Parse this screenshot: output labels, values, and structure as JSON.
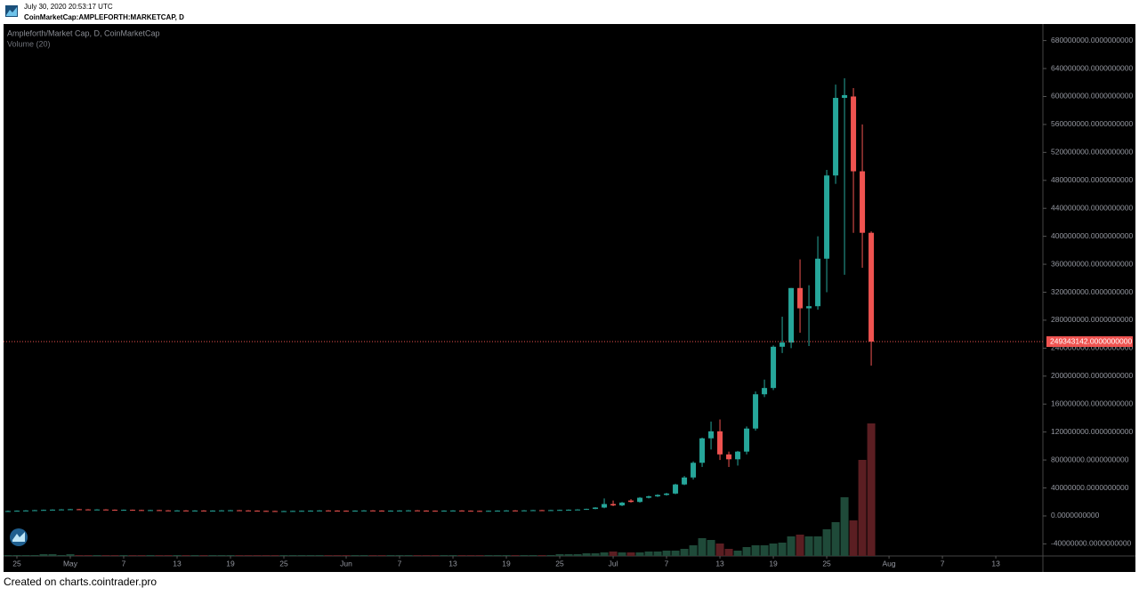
{
  "header": {
    "timestamp": "July 30, 2020 20:53:17 UTC",
    "symbol": "CoinMarketCap:AMPLEFORTH:MARKETCAP, D"
  },
  "footer": "Created on charts.cointrader.pro",
  "chart_data": {
    "type": "candlestick",
    "title": "Ampleforth/Market Cap, D, CoinMarketCap",
    "volume_title": "Volume (20)",
    "up_color": "#26a69a",
    "down_color": "#ef5350",
    "volume_up_color": "#1f4a39",
    "volume_down_color": "#5b1e22",
    "x": [
      "2020-04-24",
      "2020-04-25",
      "2020-04-26",
      "2020-04-27",
      "2020-04-28",
      "2020-04-29",
      "2020-04-30",
      "2020-05-01",
      "2020-05-02",
      "2020-05-03",
      "2020-05-04",
      "2020-05-05",
      "2020-05-06",
      "2020-05-07",
      "2020-05-08",
      "2020-05-09",
      "2020-05-10",
      "2020-05-11",
      "2020-05-12",
      "2020-05-13",
      "2020-05-14",
      "2020-05-15",
      "2020-05-16",
      "2020-05-17",
      "2020-05-18",
      "2020-05-19",
      "2020-05-20",
      "2020-05-21",
      "2020-05-22",
      "2020-05-23",
      "2020-05-24",
      "2020-05-25",
      "2020-05-26",
      "2020-05-27",
      "2020-05-28",
      "2020-05-29",
      "2020-05-30",
      "2020-05-31",
      "2020-06-01",
      "2020-06-02",
      "2020-06-03",
      "2020-06-04",
      "2020-06-05",
      "2020-06-06",
      "2020-06-07",
      "2020-06-08",
      "2020-06-09",
      "2020-06-10",
      "2020-06-11",
      "2020-06-12",
      "2020-06-13",
      "2020-06-14",
      "2020-06-15",
      "2020-06-16",
      "2020-06-17",
      "2020-06-18",
      "2020-06-19",
      "2020-06-20",
      "2020-06-21",
      "2020-06-22",
      "2020-06-23",
      "2020-06-24",
      "2020-06-25",
      "2020-06-26",
      "2020-06-27",
      "2020-06-28",
      "2020-06-29",
      "2020-06-30",
      "2020-07-01",
      "2020-07-02",
      "2020-07-03",
      "2020-07-04",
      "2020-07-05",
      "2020-07-06",
      "2020-07-07",
      "2020-07-08",
      "2020-07-09",
      "2020-07-10",
      "2020-07-11",
      "2020-07-12",
      "2020-07-13",
      "2020-07-14",
      "2020-07-15",
      "2020-07-16",
      "2020-07-17",
      "2020-07-18",
      "2020-07-19",
      "2020-07-20",
      "2020-07-21",
      "2020-07-22",
      "2020-07-23",
      "2020-07-24",
      "2020-07-25",
      "2020-07-26",
      "2020-07-27",
      "2020-07-28",
      "2020-07-29",
      "2020-07-30"
    ],
    "open": [
      6800000,
      7000000,
      7400000,
      7800000,
      8200000,
      8600000,
      9000000,
      9300000,
      9600000,
      9300000,
      9000000,
      9200000,
      8800000,
      8500000,
      8700000,
      8400000,
      8000000,
      8300000,
      7900000,
      7600000,
      7800000,
      7500000,
      7700000,
      7400000,
      7600000,
      7900000,
      8100000,
      7800000,
      7500000,
      7200000,
      7000000,
      6800000,
      6900000,
      7100000,
      7300000,
      7500000,
      7800000,
      7600000,
      7400000,
      7200000,
      7500000,
      7800000,
      7600000,
      7300000,
      7500000,
      7700000,
      7900000,
      7600000,
      7400000,
      7200000,
      7500000,
      7700000,
      7400000,
      7200000,
      7000000,
      7300000,
      7500000,
      7800000,
      7600000,
      7900000,
      8200000,
      8000000,
      8300000,
      8600000,
      8900000,
      9200000,
      10000000,
      12000000,
      17000000,
      15000000,
      22000000,
      20000000,
      26000000,
      28000000,
      30000000,
      32000000,
      45000000,
      55000000,
      76000000,
      111000000,
      121000000,
      88000000,
      81000000,
      92000000,
      125000000,
      174000000,
      183000000,
      242000000,
      248000000,
      326000000,
      297000000,
      300000000,
      368000000,
      487000000,
      598000000,
      600000000,
      493000000,
      405000000
    ],
    "high": [
      7600000,
      7800000,
      8200000,
      8600000,
      9000000,
      9400000,
      9700000,
      10000000,
      10000000,
      9700000,
      9600000,
      9600000,
      9200000,
      9100000,
      9100000,
      8800000,
      8700000,
      8700000,
      8300000,
      8200000,
      8200000,
      8100000,
      8100000,
      8000000,
      8300000,
      8500000,
      8500000,
      8200000,
      7900000,
      7600000,
      7400000,
      7300000,
      7500000,
      7700000,
      7900000,
      8200000,
      8200000,
      8000000,
      7800000,
      7900000,
      8200000,
      8200000,
      8000000,
      7900000,
      8100000,
      8300000,
      8300000,
      8000000,
      7800000,
      7900000,
      8100000,
      8100000,
      7800000,
      7600000,
      7700000,
      7900000,
      8200000,
      8200000,
      8300000,
      8600000,
      8600000,
      8700000,
      9000000,
      9300000,
      9600000,
      10400000,
      12500000,
      25000000,
      22000000,
      20000000,
      24000000,
      27000000,
      29000000,
      31000000,
      33000000,
      46000000,
      57000000,
      78000000,
      112000000,
      135000000,
      138000000,
      92000000,
      93000000,
      128000000,
      178000000,
      195000000,
      244000000,
      285000000,
      326000000,
      367000000,
      330000000,
      400000000,
      495000000,
      617000000,
      626000000,
      612000000,
      560000000,
      407000000
    ],
    "low": [
      6400000,
      6600000,
      7000000,
      7400000,
      7800000,
      8200000,
      8600000,
      8900000,
      8900000,
      8600000,
      8500000,
      8400000,
      8100000,
      8000000,
      8000000,
      7600000,
      7600000,
      7500000,
      7200000,
      7200000,
      7100000,
      7000000,
      7000000,
      6900000,
      7000000,
      7300000,
      7400000,
      7100000,
      6800000,
      6600000,
      6400000,
      6300000,
      6400000,
      6600000,
      6800000,
      7100000,
      7200000,
      7000000,
      6800000,
      6800000,
      7100000,
      7200000,
      6900000,
      6900000,
      7100000,
      7300000,
      7200000,
      7000000,
      6800000,
      6800000,
      7100000,
      7000000,
      6800000,
      6600000,
      6600000,
      6900000,
      7100000,
      7200000,
      7200000,
      7500000,
      7600000,
      7600000,
      7900000,
      8200000,
      8500000,
      8800000,
      9600000,
      11000000,
      14000000,
      14000000,
      19000000,
      19000000,
      25000000,
      27000000,
      29000000,
      31000000,
      44000000,
      52000000,
      70000000,
      95000000,
      80000000,
      70000000,
      72000000,
      88000000,
      122000000,
      170000000,
      180000000,
      233000000,
      240000000,
      262000000,
      243000000,
      295000000,
      320000000,
      475000000,
      345000000,
      405000000,
      355000000,
      215000000
    ],
    "close": [
      7000000,
      7400000,
      7800000,
      8200000,
      8600000,
      9000000,
      9300000,
      9600000,
      9300000,
      9000000,
      9200000,
      8800000,
      8500000,
      8700000,
      8400000,
      8000000,
      8300000,
      7900000,
      7600000,
      7800000,
      7500000,
      7700000,
      7400000,
      7600000,
      7900000,
      8100000,
      7800000,
      7500000,
      7200000,
      7000000,
      6800000,
      6900000,
      7100000,
      7300000,
      7500000,
      7800000,
      7600000,
      7400000,
      7200000,
      7500000,
      7800000,
      7600000,
      7300000,
      7500000,
      7700000,
      7900000,
      7600000,
      7400000,
      7200000,
      7500000,
      7700000,
      7400000,
      7200000,
      7000000,
      7300000,
      7500000,
      7800000,
      7600000,
      7900000,
      8200000,
      8000000,
      8300000,
      8600000,
      8900000,
      9200000,
      10000000,
      12000000,
      17000000,
      15000000,
      19000000,
      20000000,
      26000000,
      28000000,
      30000000,
      32000000,
      45000000,
      55000000,
      76000000,
      111000000,
      121000000,
      88000000,
      81000000,
      92000000,
      125000000,
      174000000,
      183000000,
      242000000,
      248000000,
      326000000,
      297000000,
      300000000,
      368000000,
      487000000,
      598000000,
      602000000,
      493000000,
      405000000,
      249343142
    ],
    "volume": [
      1,
      1,
      1,
      1,
      2,
      2,
      1,
      2,
      1,
      1,
      1,
      1,
      1,
      1,
      1,
      1,
      1,
      1,
      1,
      1,
      1,
      1,
      1,
      1,
      1,
      1,
      1,
      1,
      1,
      1,
      1,
      1,
      1,
      1,
      1,
      1,
      1,
      1,
      1,
      1,
      1,
      1,
      1,
      1,
      1,
      1,
      1,
      1,
      1,
      1,
      1,
      1,
      1,
      1,
      1,
      1,
      1,
      1,
      1,
      1,
      1,
      1,
      2,
      2,
      2,
      3,
      3,
      4,
      5,
      4,
      4,
      4,
      5,
      5,
      6,
      6,
      8,
      12,
      20,
      18,
      14,
      8,
      6,
      10,
      12,
      12,
      14,
      15,
      22,
      24,
      22,
      22,
      30,
      38,
      66,
      40,
      108,
      149
    ],
    "xlim": [
      "2020-04-23T12:00:00Z",
      "2020-08-18T07:00:00Z"
    ],
    "xticks": [
      {
        "value": "2020-04-25",
        "label": "25"
      },
      {
        "value": "2020-05-01",
        "label": "May"
      },
      {
        "value": "2020-05-07",
        "label": "7"
      },
      {
        "value": "2020-05-13",
        "label": "13"
      },
      {
        "value": "2020-05-19",
        "label": "19"
      },
      {
        "value": "2020-05-25",
        "label": "25"
      },
      {
        "value": "2020-06-01",
        "label": "Jun"
      },
      {
        "value": "2020-06-07",
        "label": "7"
      },
      {
        "value": "2020-06-13",
        "label": "13"
      },
      {
        "value": "2020-06-19",
        "label": "19"
      },
      {
        "value": "2020-06-25",
        "label": "25"
      },
      {
        "value": "2020-07-01",
        "label": "Jul"
      },
      {
        "value": "2020-07-07",
        "label": "7"
      },
      {
        "value": "2020-07-13",
        "label": "13"
      },
      {
        "value": "2020-07-19",
        "label": "19"
      },
      {
        "value": "2020-07-25",
        "label": "25"
      },
      {
        "value": "2020-08-01",
        "label": "Aug"
      },
      {
        "value": "2020-08-07",
        "label": "7"
      },
      {
        "value": "2020-08-13",
        "label": "13"
      }
    ],
    "ylim": [
      -57300000,
      702400000
    ],
    "yticks": [
      {
        "value": -40000000,
        "label": "-40000000.0000000000"
      },
      {
        "value": 0,
        "label": "0.0000000000"
      },
      {
        "value": 40000000,
        "label": "40000000.0000000000"
      },
      {
        "value": 80000000,
        "label": "80000000.0000000000"
      },
      {
        "value": 120000000,
        "label": "120000000.0000000000"
      },
      {
        "value": 160000000,
        "label": "160000000.0000000000"
      },
      {
        "value": 200000000,
        "label": "200000000.0000000000"
      },
      {
        "value": 240000000,
        "label": "240000000.0000000000"
      },
      {
        "value": 280000000,
        "label": "280000000.0000000000"
      },
      {
        "value": 320000000,
        "label": "320000000.0000000000"
      },
      {
        "value": 360000000,
        "label": "360000000.0000000000"
      },
      {
        "value": 400000000,
        "label": "400000000.0000000000"
      },
      {
        "value": 440000000,
        "label": "440000000.0000000000"
      },
      {
        "value": 480000000,
        "label": "480000000.0000000000"
      },
      {
        "value": 520000000,
        "label": "520000000.0000000000"
      },
      {
        "value": 560000000,
        "label": "560000000.0000000000"
      },
      {
        "value": 600000000,
        "label": "600000000.0000000000"
      },
      {
        "value": 640000000,
        "label": "640000000.0000000000"
      },
      {
        "value": 680000000,
        "label": "680000000.0000000000"
      }
    ],
    "last_price": {
      "value": 249343142,
      "label": "249343142.0000000000"
    }
  }
}
